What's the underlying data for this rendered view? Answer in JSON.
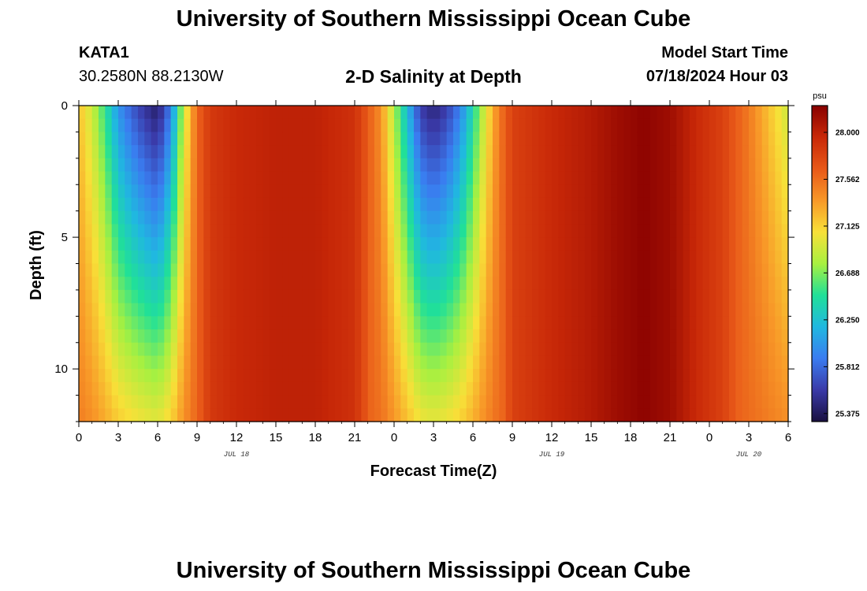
{
  "header": {
    "title": "University of Southern Mississippi Ocean Cube",
    "station_name": "KATA1",
    "station_coords": "30.2580N  88.2130W",
    "plot_title": "2-D Salinity at Depth",
    "model_start_label": "Model Start Time",
    "model_start_value": "07/18/2024 Hour 03"
  },
  "footer": {
    "title": "University of Southern Mississippi Ocean Cube"
  },
  "chart_data": {
    "type": "heatmap",
    "title": "2-D Salinity at Depth",
    "xlabel": "Forecast Time(Z)",
    "ylabel": "Depth (ft)",
    "x_hours_range": [
      0,
      54
    ],
    "y_depth_range_ft": [
      0,
      12
    ],
    "x_ticks": [
      {
        "hour": 0,
        "label": "0"
      },
      {
        "hour": 3,
        "label": "3"
      },
      {
        "hour": 6,
        "label": "6"
      },
      {
        "hour": 9,
        "label": "9"
      },
      {
        "hour": 12,
        "label": "12"
      },
      {
        "hour": 15,
        "label": "15"
      },
      {
        "hour": 18,
        "label": "18"
      },
      {
        "hour": 21,
        "label": "21"
      },
      {
        "hour": 24,
        "label": "0"
      },
      {
        "hour": 27,
        "label": "3"
      },
      {
        "hour": 30,
        "label": "6"
      },
      {
        "hour": 33,
        "label": "9"
      },
      {
        "hour": 36,
        "label": "12"
      },
      {
        "hour": 39,
        "label": "15"
      },
      {
        "hour": 42,
        "label": "18"
      },
      {
        "hour": 45,
        "label": "21"
      },
      {
        "hour": 48,
        "label": "0"
      },
      {
        "hour": 51,
        "label": "3"
      },
      {
        "hour": 54,
        "label": "6"
      }
    ],
    "date_labels": [
      {
        "hour": 12,
        "label": "JUL 18"
      },
      {
        "hour": 36,
        "label": "JUL 19"
      },
      {
        "hour": 51,
        "label": "JUL 20"
      }
    ],
    "y_ticks": [
      {
        "depth": 0,
        "label": "0"
      },
      {
        "depth": 5,
        "label": "5"
      },
      {
        "depth": 10,
        "label": "10"
      }
    ],
    "colorbar": {
      "unit": "psu",
      "min": 25.3,
      "max": 28.25,
      "ticks": [
        "25.375",
        "25.812",
        "26.250",
        "26.688",
        "27.125",
        "27.562",
        "28.000"
      ],
      "colors": [
        "#1a1040",
        "#3a3aa8",
        "#3a7cf0",
        "#20b8e0",
        "#20e098",
        "#a8f040",
        "#f8e038",
        "#f89828",
        "#e85818",
        "#c82808",
        "#880000"
      ]
    },
    "surface_salinity_profile": [
      {
        "hour": 0,
        "psu": 27.2
      },
      {
        "hour": 1,
        "psu": 26.9
      },
      {
        "hour": 2,
        "psu": 26.5
      },
      {
        "hour": 3,
        "psu": 26.0
      },
      {
        "hour": 4,
        "psu": 25.75
      },
      {
        "hour": 5,
        "psu": 25.55
      },
      {
        "hour": 6,
        "psu": 25.4
      },
      {
        "hour": 7,
        "psu": 25.9
      },
      {
        "hour": 8,
        "psu": 26.9
      },
      {
        "hour": 9,
        "psu": 27.6
      },
      {
        "hour": 10,
        "psu": 27.85
      },
      {
        "hour": 12,
        "psu": 27.95
      },
      {
        "hour": 15,
        "psu": 28.0
      },
      {
        "hour": 18,
        "psu": 28.0
      },
      {
        "hour": 21,
        "psu": 27.9
      },
      {
        "hour": 23,
        "psu": 27.4
      },
      {
        "hour": 24,
        "psu": 26.8
      },
      {
        "hour": 25,
        "psu": 26.2
      },
      {
        "hour": 26,
        "psu": 25.6
      },
      {
        "hour": 27,
        "psu": 25.45
      },
      {
        "hour": 28,
        "psu": 25.6
      },
      {
        "hour": 29,
        "psu": 25.9
      },
      {
        "hour": 30,
        "psu": 26.4
      },
      {
        "hour": 31,
        "psu": 27.0
      },
      {
        "hour": 32,
        "psu": 27.5
      },
      {
        "hour": 33,
        "psu": 27.8
      },
      {
        "hour": 36,
        "psu": 27.95
      },
      {
        "hour": 39,
        "psu": 28.05
      },
      {
        "hour": 41,
        "psu": 28.15
      },
      {
        "hour": 43,
        "psu": 28.22
      },
      {
        "hour": 45,
        "psu": 28.15
      },
      {
        "hour": 47,
        "psu": 27.95
      },
      {
        "hour": 49,
        "psu": 27.8
      },
      {
        "hour": 51,
        "psu": 27.5
      },
      {
        "hour": 53,
        "psu": 27.1
      },
      {
        "hour": 54,
        "psu": 26.9
      }
    ]
  }
}
